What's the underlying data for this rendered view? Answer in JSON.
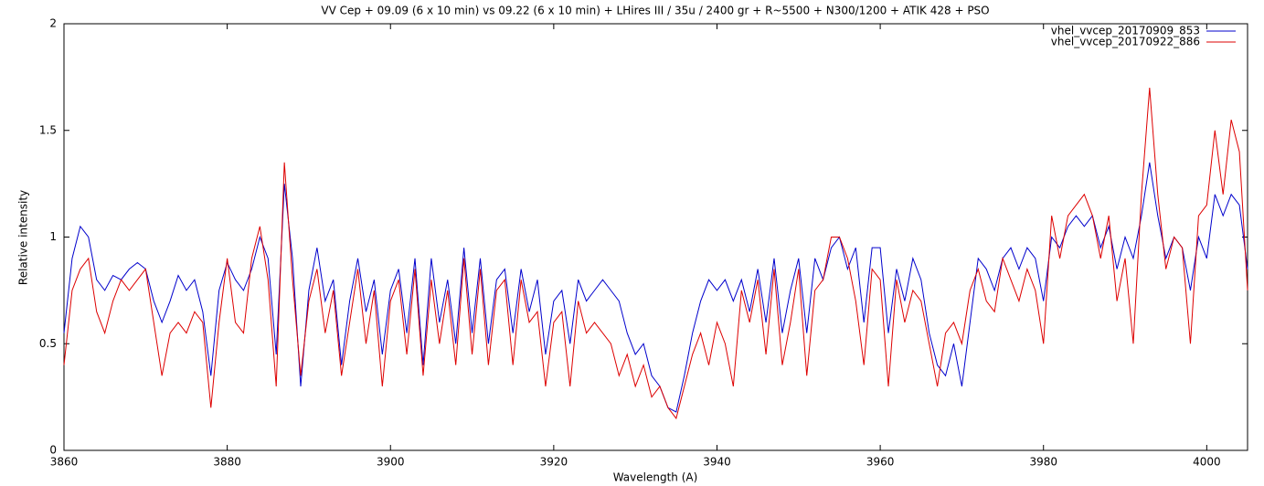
{
  "chart_data": {
    "type": "line",
    "title": "VV Cep + 09.09  (6 x 10 min) vs 09.22 (6 x 10 min) + LHires III / 35u / 2400 gr + R~5500 + N300/1200 + ATIK 428 + PSO",
    "x_label": "Wavelength (A)",
    "y_label": "Relative intensity",
    "xlim": [
      3860,
      4005
    ],
    "ylim": [
      0,
      2
    ],
    "xticks": [
      3860,
      3880,
      3900,
      3920,
      3940,
      3960,
      3980,
      4000
    ],
    "yticks": [
      0,
      0.5,
      1,
      1.5,
      2
    ],
    "grid": false,
    "legend": "top-right",
    "x": [
      3860,
      3861,
      3862,
      3863,
      3864,
      3865,
      3866,
      3867,
      3868,
      3869,
      3870,
      3871,
      3872,
      3873,
      3874,
      3875,
      3876,
      3877,
      3878,
      3879,
      3880,
      3881,
      3882,
      3883,
      3884,
      3885,
      3886,
      3887,
      3888,
      3889,
      3890,
      3891,
      3892,
      3893,
      3894,
      3895,
      3896,
      3897,
      3898,
      3899,
      3900,
      3901,
      3902,
      3903,
      3904,
      3905,
      3906,
      3907,
      3908,
      3909,
      3910,
      3911,
      3912,
      3913,
      3914,
      3915,
      3916,
      3917,
      3918,
      3919,
      3920,
      3921,
      3922,
      3923,
      3924,
      3925,
      3926,
      3927,
      3928,
      3929,
      3930,
      3931,
      3932,
      3933,
      3934,
      3935,
      3936,
      3937,
      3938,
      3939,
      3940,
      3941,
      3942,
      3943,
      3944,
      3945,
      3946,
      3947,
      3948,
      3949,
      3950,
      3951,
      3952,
      3953,
      3954,
      3955,
      3956,
      3957,
      3958,
      3959,
      3960,
      3961,
      3962,
      3963,
      3964,
      3965,
      3966,
      3967,
      3968,
      3969,
      3970,
      3971,
      3972,
      3973,
      3974,
      3975,
      3976,
      3977,
      3978,
      3979,
      3980,
      3981,
      3982,
      3983,
      3984,
      3985,
      3986,
      3987,
      3988,
      3989,
      3990,
      3991,
      3992,
      3993,
      3994,
      3995,
      3996,
      3997,
      3998,
      3999,
      4000,
      4001,
      4002,
      4003,
      4004,
      4005
    ],
    "series": [
      {
        "name": "vhel_vvcep_20170909_853",
        "color": "#0000cc",
        "values": [
          0.55,
          0.9,
          1.05,
          1.0,
          0.8,
          0.75,
          0.82,
          0.8,
          0.85,
          0.88,
          0.85,
          0.7,
          0.6,
          0.7,
          0.82,
          0.75,
          0.8,
          0.65,
          0.35,
          0.75,
          0.88,
          0.8,
          0.75,
          0.85,
          1.0,
          0.9,
          0.45,
          1.25,
          0.9,
          0.3,
          0.75,
          0.95,
          0.7,
          0.8,
          0.4,
          0.7,
          0.9,
          0.65,
          0.8,
          0.45,
          0.75,
          0.85,
          0.55,
          0.9,
          0.4,
          0.9,
          0.6,
          0.8,
          0.5,
          0.95,
          0.55,
          0.9,
          0.5,
          0.8,
          0.85,
          0.55,
          0.85,
          0.65,
          0.8,
          0.45,
          0.7,
          0.75,
          0.5,
          0.8,
          0.7,
          0.75,
          0.8,
          0.75,
          0.7,
          0.55,
          0.45,
          0.5,
          0.35,
          0.3,
          0.2,
          0.18,
          0.35,
          0.55,
          0.7,
          0.8,
          0.75,
          0.8,
          0.7,
          0.8,
          0.65,
          0.85,
          0.6,
          0.9,
          0.55,
          0.75,
          0.9,
          0.55,
          0.9,
          0.8,
          0.95,
          1.0,
          0.85,
          0.95,
          0.6,
          0.95,
          0.95,
          0.55,
          0.85,
          0.7,
          0.9,
          0.8,
          0.55,
          0.4,
          0.35,
          0.5,
          0.3,
          0.6,
          0.9,
          0.85,
          0.75,
          0.9,
          0.95,
          0.85,
          0.95,
          0.9,
          0.7,
          1.0,
          0.95,
          1.05,
          1.1,
          1.05,
          1.1,
          0.95,
          1.05,
          0.85,
          1.0,
          0.9,
          1.1,
          1.35,
          1.1,
          0.9,
          1.0,
          0.95,
          0.75,
          1.0,
          0.9,
          1.2,
          1.1,
          1.2,
          1.15,
          0.85
        ]
      },
      {
        "name": "vhel_vvcep_20170922_886",
        "color": "#dd0000",
        "values": [
          0.4,
          0.75,
          0.85,
          0.9,
          0.65,
          0.55,
          0.7,
          0.8,
          0.75,
          0.8,
          0.85,
          0.6,
          0.35,
          0.55,
          0.6,
          0.55,
          0.65,
          0.6,
          0.2,
          0.6,
          0.9,
          0.6,
          0.55,
          0.9,
          1.05,
          0.8,
          0.3,
          1.35,
          0.8,
          0.35,
          0.7,
          0.85,
          0.55,
          0.75,
          0.35,
          0.6,
          0.85,
          0.5,
          0.75,
          0.3,
          0.7,
          0.8,
          0.45,
          0.85,
          0.35,
          0.8,
          0.5,
          0.75,
          0.4,
          0.9,
          0.45,
          0.85,
          0.4,
          0.75,
          0.8,
          0.4,
          0.8,
          0.6,
          0.65,
          0.3,
          0.6,
          0.65,
          0.3,
          0.7,
          0.55,
          0.6,
          0.55,
          0.5,
          0.35,
          0.45,
          0.3,
          0.4,
          0.25,
          0.3,
          0.2,
          0.15,
          0.3,
          0.45,
          0.55,
          0.4,
          0.6,
          0.5,
          0.3,
          0.75,
          0.6,
          0.8,
          0.45,
          0.85,
          0.4,
          0.6,
          0.85,
          0.35,
          0.75,
          0.8,
          1.0,
          1.0,
          0.9,
          0.7,
          0.4,
          0.85,
          0.8,
          0.3,
          0.8,
          0.6,
          0.75,
          0.7,
          0.5,
          0.3,
          0.55,
          0.6,
          0.5,
          0.75,
          0.85,
          0.7,
          0.65,
          0.9,
          0.8,
          0.7,
          0.85,
          0.75,
          0.5,
          1.1,
          0.9,
          1.1,
          1.15,
          1.2,
          1.1,
          0.9,
          1.1,
          0.7,
          0.9,
          0.5,
          1.2,
          1.7,
          1.2,
          0.85,
          1.0,
          0.95,
          0.5,
          1.1,
          1.15,
          1.5,
          1.2,
          1.55,
          1.4,
          0.75
        ]
      }
    ]
  }
}
